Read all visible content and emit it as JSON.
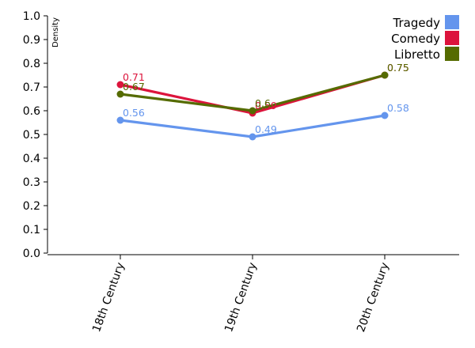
{
  "chart_data": {
    "type": "line",
    "categories": [
      "18th Century",
      "19th Century",
      "20th Century"
    ],
    "ylabel": "Density",
    "xlabel": "",
    "ylim": [
      0,
      1
    ],
    "yticks": [
      "0.0",
      "0.1",
      "0.2",
      "0.3",
      "0.4",
      "0.5",
      "0.6",
      "0.7",
      "0.8",
      "0.9",
      "1.0"
    ],
    "legend_position": "top-right",
    "series": [
      {
        "name": "Tragedy",
        "color": "#6495ED",
        "values": [
          0.56,
          0.49,
          0.58
        ],
        "labels": [
          "0.56",
          "0.49",
          "0.58"
        ]
      },
      {
        "name": "Comedy",
        "color": "#DC143C",
        "values": [
          0.71,
          0.59,
          0.75
        ],
        "labels": [
          "0.71",
          "0.59",
          "0.75"
        ]
      },
      {
        "name": "Libretto",
        "color": "#556B00",
        "values": [
          0.67,
          0.6,
          0.75
        ],
        "labels": [
          "0.67",
          "0.6",
          "0.75"
        ]
      }
    ]
  }
}
